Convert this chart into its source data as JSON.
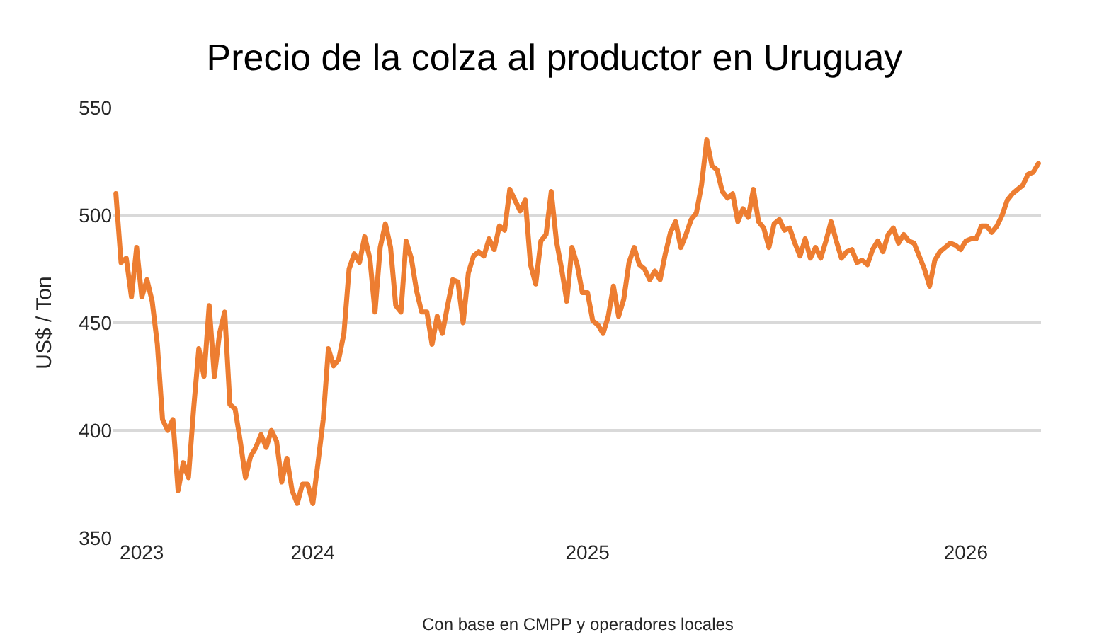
{
  "chart_data": {
    "type": "line",
    "title": "Precio de la colza al productor en Uruguay",
    "ylabel": "US$ / Ton",
    "annotations": [
      "Con base en CMPP y operadores locales"
    ],
    "categories": [
      null,
      null,
      null,
      null,
      null,
      "2023",
      null,
      null,
      null,
      null,
      null,
      null,
      null,
      null,
      null,
      null,
      null,
      null,
      null,
      null,
      null,
      null,
      null,
      null,
      null,
      null,
      null,
      null,
      null,
      null,
      null,
      null,
      null,
      null,
      null,
      null,
      null,
      null,
      "2024",
      null,
      null,
      null,
      null,
      null,
      null,
      null,
      null,
      null,
      null,
      null,
      null,
      null,
      null,
      null,
      null,
      null,
      null,
      null,
      null,
      null,
      null,
      null,
      null,
      null,
      null,
      null,
      null,
      null,
      null,
      null,
      null,
      null,
      null,
      null,
      null,
      null,
      null,
      null,
      null,
      null,
      null,
      null,
      null,
      null,
      null,
      null,
      null,
      null,
      null,
      null,
      null,
      "2025",
      null,
      null,
      null,
      null,
      null,
      null,
      null,
      null,
      null,
      null,
      null,
      null,
      null,
      null,
      null,
      null,
      null,
      null,
      null,
      null,
      null,
      null,
      null,
      null,
      null,
      null,
      null,
      null,
      null,
      null,
      null,
      null,
      null,
      null,
      null,
      null,
      null,
      null,
      null,
      null,
      null,
      null,
      null,
      null,
      null,
      null,
      null,
      null,
      null,
      null,
      null,
      null,
      null,
      null,
      null,
      null,
      null,
      null,
      null,
      null,
      null,
      null,
      null,
      null,
      null,
      null,
      null,
      null,
      null,
      null,
      null,
      null,
      "2026",
      null,
      null,
      null,
      null,
      null,
      null,
      null,
      null,
      null,
      null,
      null,
      null,
      null,
      null
    ],
    "series": [
      {
        "color": "#ed7d31",
        "values": [
          510,
          478,
          480,
          462,
          485,
          462,
          470,
          460,
          440,
          405,
          400,
          405,
          372,
          385,
          378,
          410,
          438,
          425,
          458,
          425,
          445,
          455,
          412,
          410,
          395,
          378,
          388,
          392,
          398,
          392,
          400,
          395,
          376,
          387,
          372,
          366,
          375,
          375,
          366,
          385,
          405,
          438,
          430,
          433,
          445,
          475,
          482,
          478,
          490,
          480,
          455,
          485,
          496,
          485,
          458,
          455,
          488,
          480,
          465,
          455,
          455,
          440,
          453,
          445,
          458,
          470,
          469,
          450,
          473,
          481,
          483,
          481,
          489,
          484,
          495,
          493,
          512,
          507,
          502,
          507,
          477,
          468,
          488,
          491,
          511,
          488,
          475,
          460,
          485,
          477,
          464,
          464,
          451,
          449,
          445,
          453,
          467,
          453,
          461,
          478,
          485,
          477,
          475,
          470,
          474,
          470,
          482,
          492,
          497,
          485,
          491,
          498,
          501,
          514,
          535,
          523,
          521,
          511,
          508,
          510,
          497,
          503,
          499,
          512,
          497,
          494,
          485,
          496,
          498,
          493,
          494,
          487,
          481,
          489,
          480,
          485,
          480,
          488,
          497,
          488,
          480,
          483,
          484,
          478,
          479,
          477,
          484,
          488,
          483,
          491,
          494,
          487,
          491,
          488,
          487,
          481,
          475,
          467,
          479,
          483,
          485,
          487,
          486,
          484,
          488,
          489,
          489,
          495,
          495,
          492,
          495,
          500,
          507,
          510,
          512,
          514,
          519,
          520,
          524
        ]
      }
    ],
    "ylim": [
      350,
      550
    ],
    "yticks": [
      350,
      400,
      450,
      500,
      550
    ],
    "grid": "y"
  }
}
